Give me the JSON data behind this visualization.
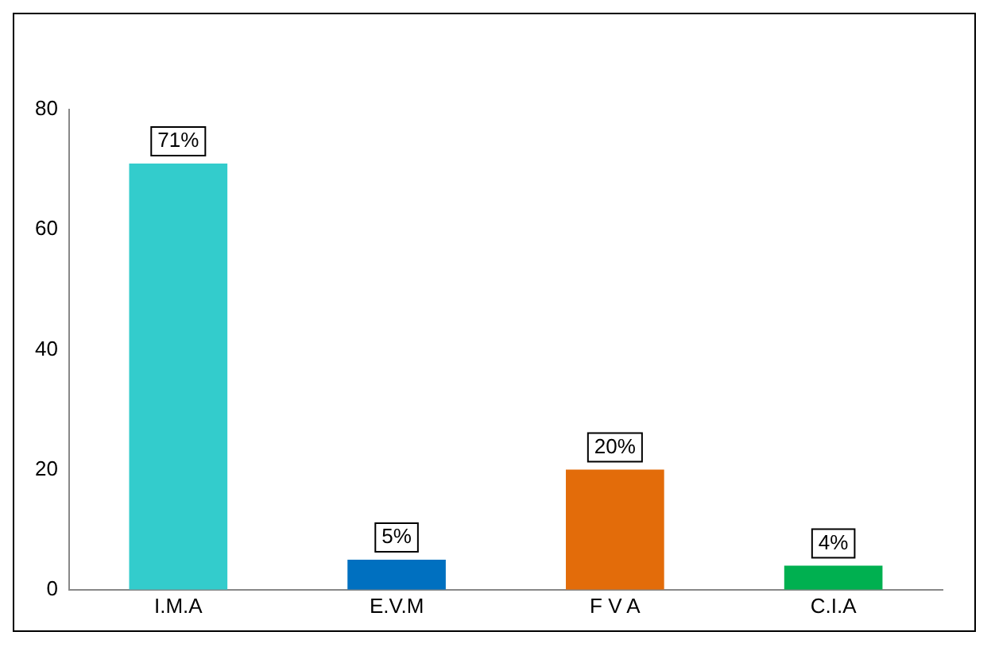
{
  "chart_data": {
    "type": "bar",
    "categories": [
      "I.M.A",
      "E.V.M",
      "F V A",
      "C.I.A"
    ],
    "values": [
      71,
      5,
      20,
      4
    ],
    "colors": [
      "#33cccc",
      "#0070c0",
      "#e36c0a",
      "#00b050"
    ],
    "value_labels": [
      "71%",
      "5%",
      "20%",
      "4%"
    ],
    "ylim": [
      0,
      80
    ],
    "yticks": [
      0,
      20,
      40,
      60,
      80
    ],
    "grid": false,
    "legend": false
  }
}
